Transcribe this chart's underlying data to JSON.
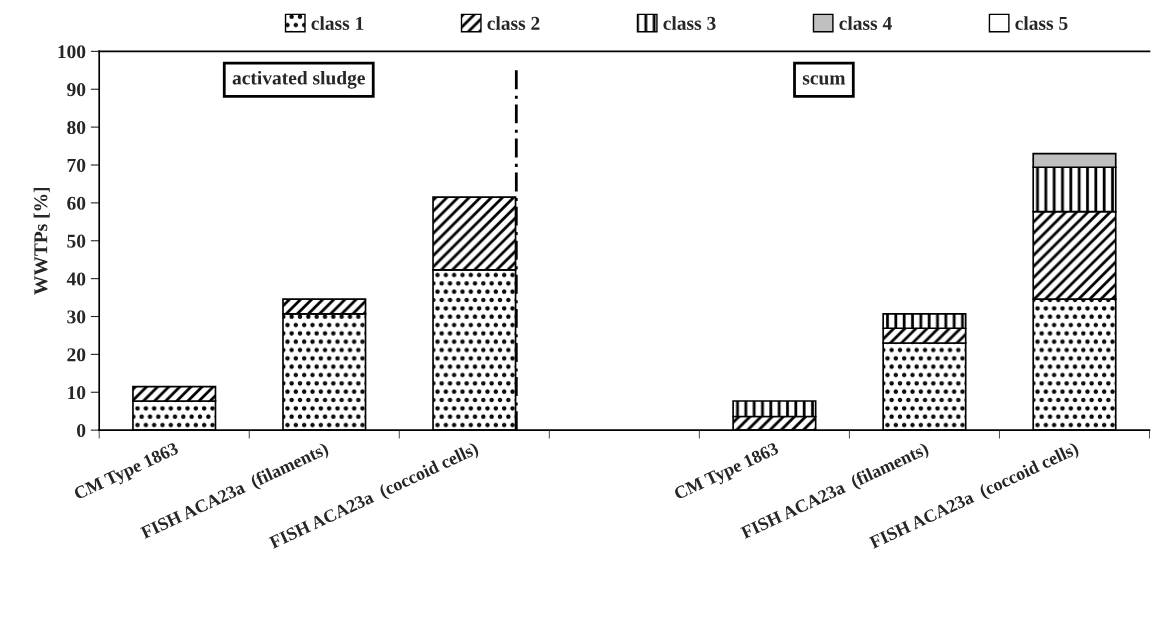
{
  "chart_data": {
    "type": "bar",
    "stacked": true,
    "ylabel": "WWTPs [%]",
    "categories": [
      "CM Type 1863",
      "FISH ACA23a  (filaments)",
      "FISH ACA23a  (coccoid cells)",
      null,
      "CM Type 1863",
      "FISH ACA23a  (filaments)",
      "FISH ACA23a  (coccoid cells)"
    ],
    "series": [
      {
        "name": "class 1",
        "color": "#000000",
        "values": [
          7.7,
          30.7,
          42.3,
          null,
          null,
          23.0,
          34.6
        ]
      },
      {
        "name": "class 2",
        "color": "#000000",
        "values": [
          3.8,
          3.9,
          19.2,
          null,
          3.6,
          3.9,
          23.1
        ]
      },
      {
        "name": "class 3",
        "color": "#000000",
        "values": [
          null,
          null,
          null,
          null,
          4.1,
          3.8,
          11.7
        ]
      },
      {
        "name": "class 4",
        "color": "#c0c0c0",
        "values": [
          null,
          null,
          null,
          null,
          null,
          null,
          3.6
        ]
      },
      {
        "name": "class 5",
        "color": "#ffffff",
        "values": [
          null,
          null,
          null,
          null,
          null,
          null,
          null
        ]
      }
    ],
    "ylim": [
      0,
      100
    ],
    "yticks": [
      0,
      10,
      20,
      30,
      40,
      50,
      60,
      70,
      80,
      90,
      100
    ],
    "annotations": [
      "activated sludge",
      "scum"
    ],
    "grid": false,
    "legend": "top"
  }
}
